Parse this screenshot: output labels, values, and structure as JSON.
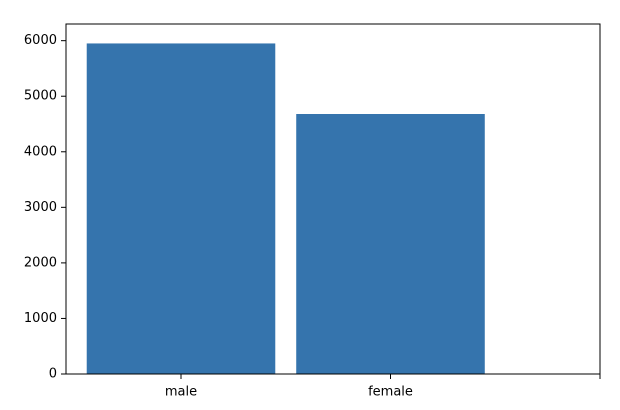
{
  "chart_data": {
    "type": "bar",
    "categories": [
      "male",
      "female",
      null
    ],
    "values": [
      5950,
      4680,
      null
    ],
    "color": "#3574ad",
    "ylim": [
      0,
      6300
    ],
    "yticks": [
      0,
      1000,
      2000,
      3000,
      4000,
      5000,
      6000
    ]
  }
}
